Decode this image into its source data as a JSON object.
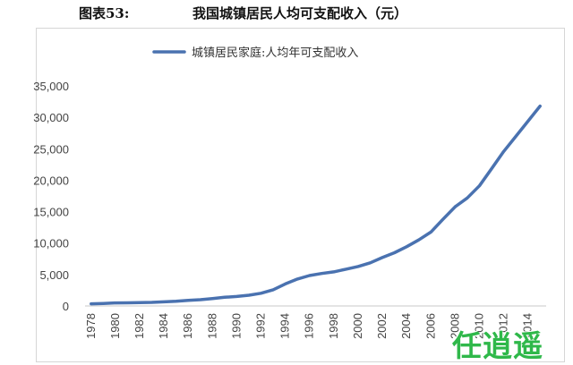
{
  "header": {
    "figure_label": "图表53:",
    "figure_title": "我国城镇居民人均可支配收入（元）"
  },
  "chart_data": {
    "type": "line",
    "title": "",
    "xlabel": "",
    "ylabel": "",
    "series": [
      {
        "name": "城镇居民家庭:人均年可支配收入",
        "color": "#4a72b0",
        "x": [
          1978,
          1979,
          1980,
          1981,
          1982,
          1983,
          1984,
          1985,
          1986,
          1987,
          1988,
          1989,
          1990,
          1991,
          1992,
          1993,
          1994,
          1995,
          1996,
          1997,
          1998,
          1999,
          2000,
          2001,
          2002,
          2003,
          2004,
          2005,
          2006,
          2007,
          2008,
          2009,
          2010,
          2011,
          2012,
          2013,
          2014,
          2015
        ],
        "values": [
          343,
          405,
          478,
          500,
          535,
          565,
          652,
          739,
          900,
          1002,
          1180,
          1374,
          1510,
          1701,
          2027,
          2577,
          3496,
          4283,
          4839,
          5160,
          5425,
          5854,
          6280,
          6860,
          7703,
          8472,
          9422,
          10493,
          11759,
          13786,
          15781,
          17175,
          19109,
          21810,
          24565,
          26955,
          29381,
          31790
        ]
      }
    ],
    "x_tick_labels": [
      "1978",
      "1980",
      "1982",
      "1984",
      "1986",
      "1988",
      "1990",
      "1992",
      "1994",
      "1996",
      "1998",
      "2000",
      "2002",
      "2004",
      "2006",
      "2008",
      "2010",
      "2012",
      "2014"
    ],
    "y_tick_labels": [
      "0",
      "5,000",
      "10,000",
      "15,000",
      "20,000",
      "25,000",
      "30,000",
      "35,000"
    ],
    "ylim": [
      0,
      35000
    ],
    "xlim": [
      1977.5,
      2015.5
    ],
    "grid": false,
    "legend_position": "top-center"
  },
  "watermark": {
    "text": "任逍遥",
    "color": "#2fb84a"
  }
}
